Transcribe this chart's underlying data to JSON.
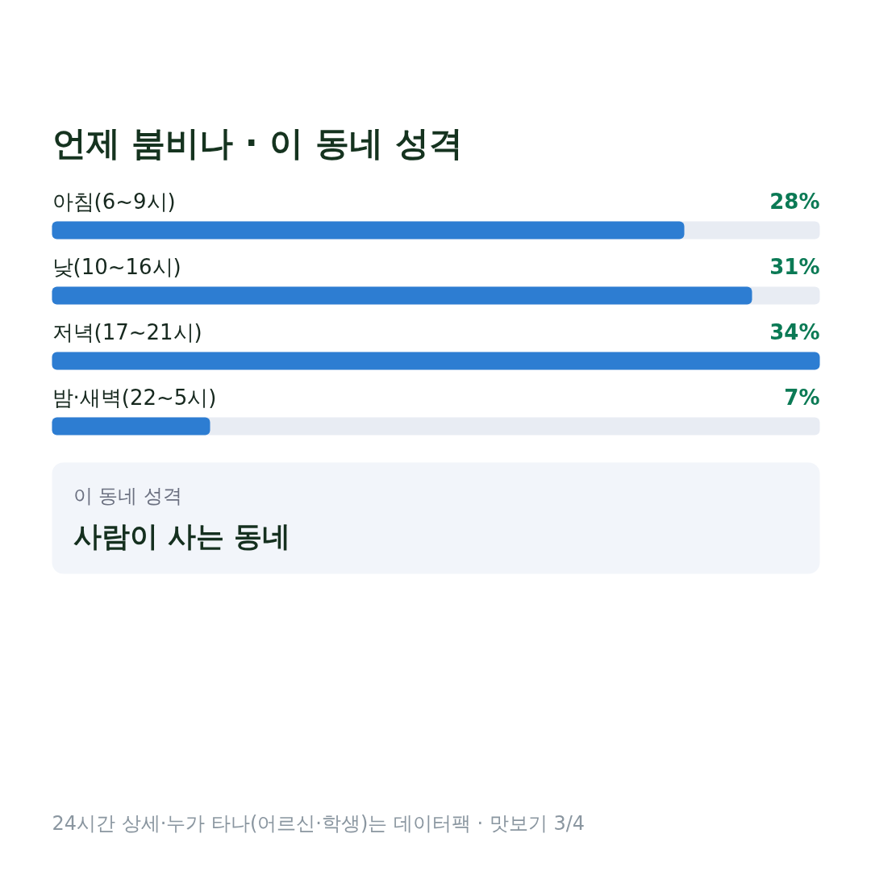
{
  "chart_data": {
    "type": "bar",
    "orientation": "horizontal",
    "title": "언제 붐비나 · 이 동네 성격",
    "categories": [
      "아침(6~9시)",
      "낮(10~16시)",
      "저녁(17~21시)",
      "밤·새벽(22~5시)"
    ],
    "values": [
      28,
      31,
      34,
      7
    ],
    "value_labels": [
      "28%",
      "31%",
      "34%",
      "7%"
    ],
    "color": "#2d7dd2",
    "annotations": [
      "이 동네 성격",
      "사람이 사는 동네",
      "24시간 상세·누가 타나(어르신·학생)는 데이터팩 · 맛보기 3/4"
    ]
  }
}
